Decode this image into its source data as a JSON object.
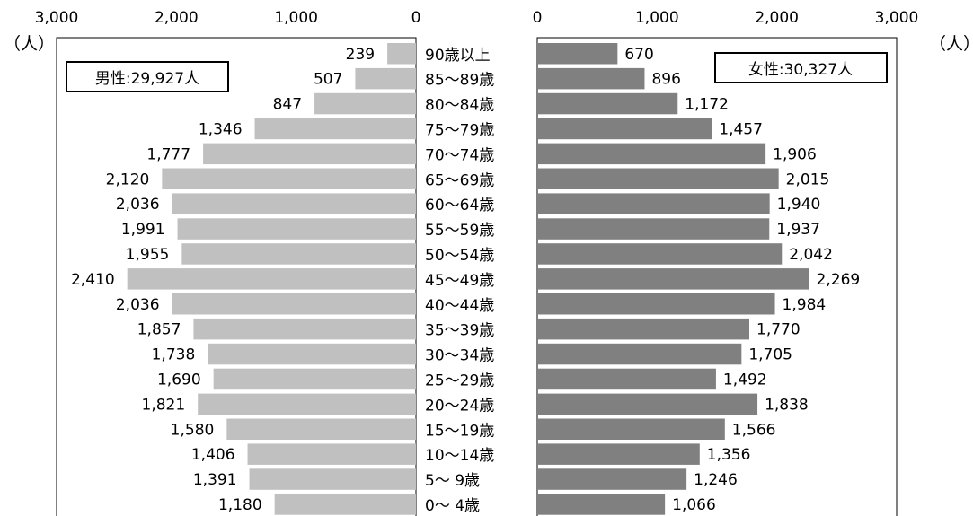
{
  "chart_data": {
    "type": "bar",
    "subtype": "population-pyramid",
    "unit_label": "（人）",
    "x_ticks": [
      "3,000",
      "2,000",
      "1,000",
      "0"
    ],
    "x_ticks_right": [
      "0",
      "1,000",
      "2,000",
      "3,000"
    ],
    "xlim": [
      0,
      3000
    ],
    "categories": [
      "90歳以上",
      "85～89歳",
      "80～84歳",
      "75～79歳",
      "70～74歳",
      "65～69歳",
      "60～64歳",
      "55～59歳",
      "50～54歳",
      "45～49歳",
      "40～44歳",
      "35～39歳",
      "30～34歳",
      "25～29歳",
      "20～24歳",
      "15～19歳",
      "10～14歳",
      "5～ 9歳",
      "0～ 4歳"
    ],
    "series": [
      {
        "name": "男性",
        "label": "男性:29,927人",
        "color": "#c0c0c0",
        "values": [
          239,
          507,
          847,
          1346,
          1777,
          2120,
          2036,
          1991,
          1955,
          2410,
          2036,
          1857,
          1738,
          1690,
          1821,
          1580,
          1406,
          1391,
          1180
        ],
        "value_labels": [
          "239",
          "507",
          "847",
          "1,346",
          "1,777",
          "2,120",
          "2,036",
          "1,991",
          "1,955",
          "2,410",
          "2,036",
          "1,857",
          "1,738",
          "1,690",
          "1,821",
          "1,580",
          "1,406",
          "1,391",
          "1,180"
        ]
      },
      {
        "name": "女性",
        "label": "女性:30,327人",
        "color": "#808080",
        "values": [
          670,
          896,
          1172,
          1457,
          1906,
          2015,
          1940,
          1937,
          2042,
          2269,
          1984,
          1770,
          1705,
          1492,
          1838,
          1566,
          1356,
          1246,
          1066
        ],
        "value_labels": [
          "670",
          "896",
          "1,172",
          "1,457",
          "1,906",
          "2,015",
          "1,940",
          "1,937",
          "2,042",
          "2,269",
          "1,984",
          "1,770",
          "1,705",
          "1,492",
          "1,838",
          "1,566",
          "1,356",
          "1,246",
          "1,066"
        ]
      }
    ],
    "grid": false
  }
}
